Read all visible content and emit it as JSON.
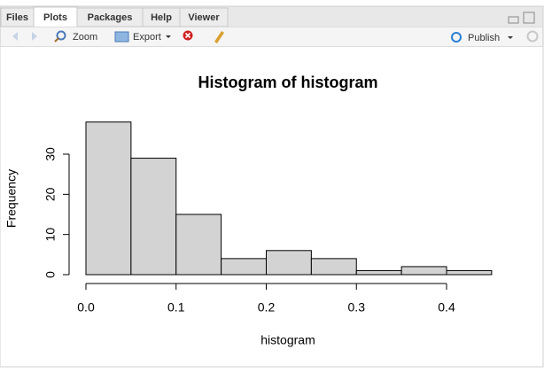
{
  "tabs": [
    "Files",
    "Plots",
    "Packages",
    "Help",
    "Viewer"
  ],
  "toolbar": {
    "zoom": "Zoom",
    "export": "Export",
    "publish": "Publish"
  },
  "chart_data": {
    "type": "histogram",
    "title": "Histogram of histogram",
    "x_label": "histogram",
    "y_label": "Frequency",
    "bins": [
      0,
      0.05,
      0.1,
      0.15,
      0.2,
      0.25,
      0.3,
      0.35,
      0.4,
      0.45
    ],
    "values": [
      38,
      29,
      15,
      4,
      6,
      4,
      1,
      2,
      1
    ],
    "color": "#d3d3d3",
    "xlim": [
      0,
      0.45
    ],
    "xticks": [
      {
        "value": 0,
        "label": "0.0"
      },
      0.1,
      0.2,
      0.3,
      0.4
    ],
    "ylim": [
      0,
      40
    ],
    "yticks": [
      0,
      10,
      20,
      30
    ]
  }
}
